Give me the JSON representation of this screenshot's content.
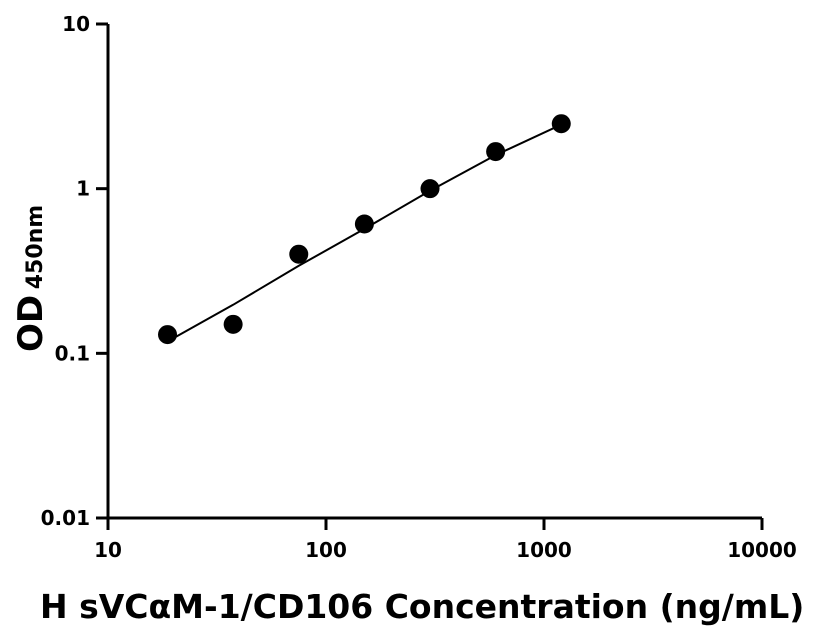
{
  "chart_data": {
    "type": "scatter",
    "xscale": "log",
    "yscale": "log",
    "xlim": [
      10,
      10000
    ],
    "ylim": [
      0.01,
      10
    ],
    "xticks": [
      10,
      100,
      1000,
      10000
    ],
    "xtick_labels": [
      "10",
      "100",
      "1000",
      "10000"
    ],
    "yticks": [
      0.01,
      0.1,
      1,
      10
    ],
    "ytick_labels": [
      "0.01",
      "0.1",
      "1",
      "10"
    ],
    "xlabel": "H sVCαM-1/CD106 Concentration (ng/mL)",
    "ylabel_main": "OD",
    "ylabel_sub": "450nm",
    "grid": false,
    "series": [
      {
        "points": [
          {
            "x": 18.75,
            "y": 0.13
          },
          {
            "x": 37.5,
            "y": 0.15
          },
          {
            "x": 75,
            "y": 0.4
          },
          {
            "x": 150,
            "y": 0.61
          },
          {
            "x": 300,
            "y": 1.0
          },
          {
            "x": 600,
            "y": 1.68
          },
          {
            "x": 1200,
            "y": 2.48
          }
        ],
        "fit_curve": [
          {
            "x": 18.75,
            "y": 0.118
          },
          {
            "x": 37.5,
            "y": 0.197
          },
          {
            "x": 75,
            "y": 0.34
          },
          {
            "x": 150,
            "y": 0.57
          },
          {
            "x": 300,
            "y": 0.97
          },
          {
            "x": 600,
            "y": 1.6
          },
          {
            "x": 1200,
            "y": 2.45
          }
        ]
      }
    ],
    "colors": {
      "marker": "#000000",
      "line": "#000000",
      "axis": "#000000"
    }
  }
}
